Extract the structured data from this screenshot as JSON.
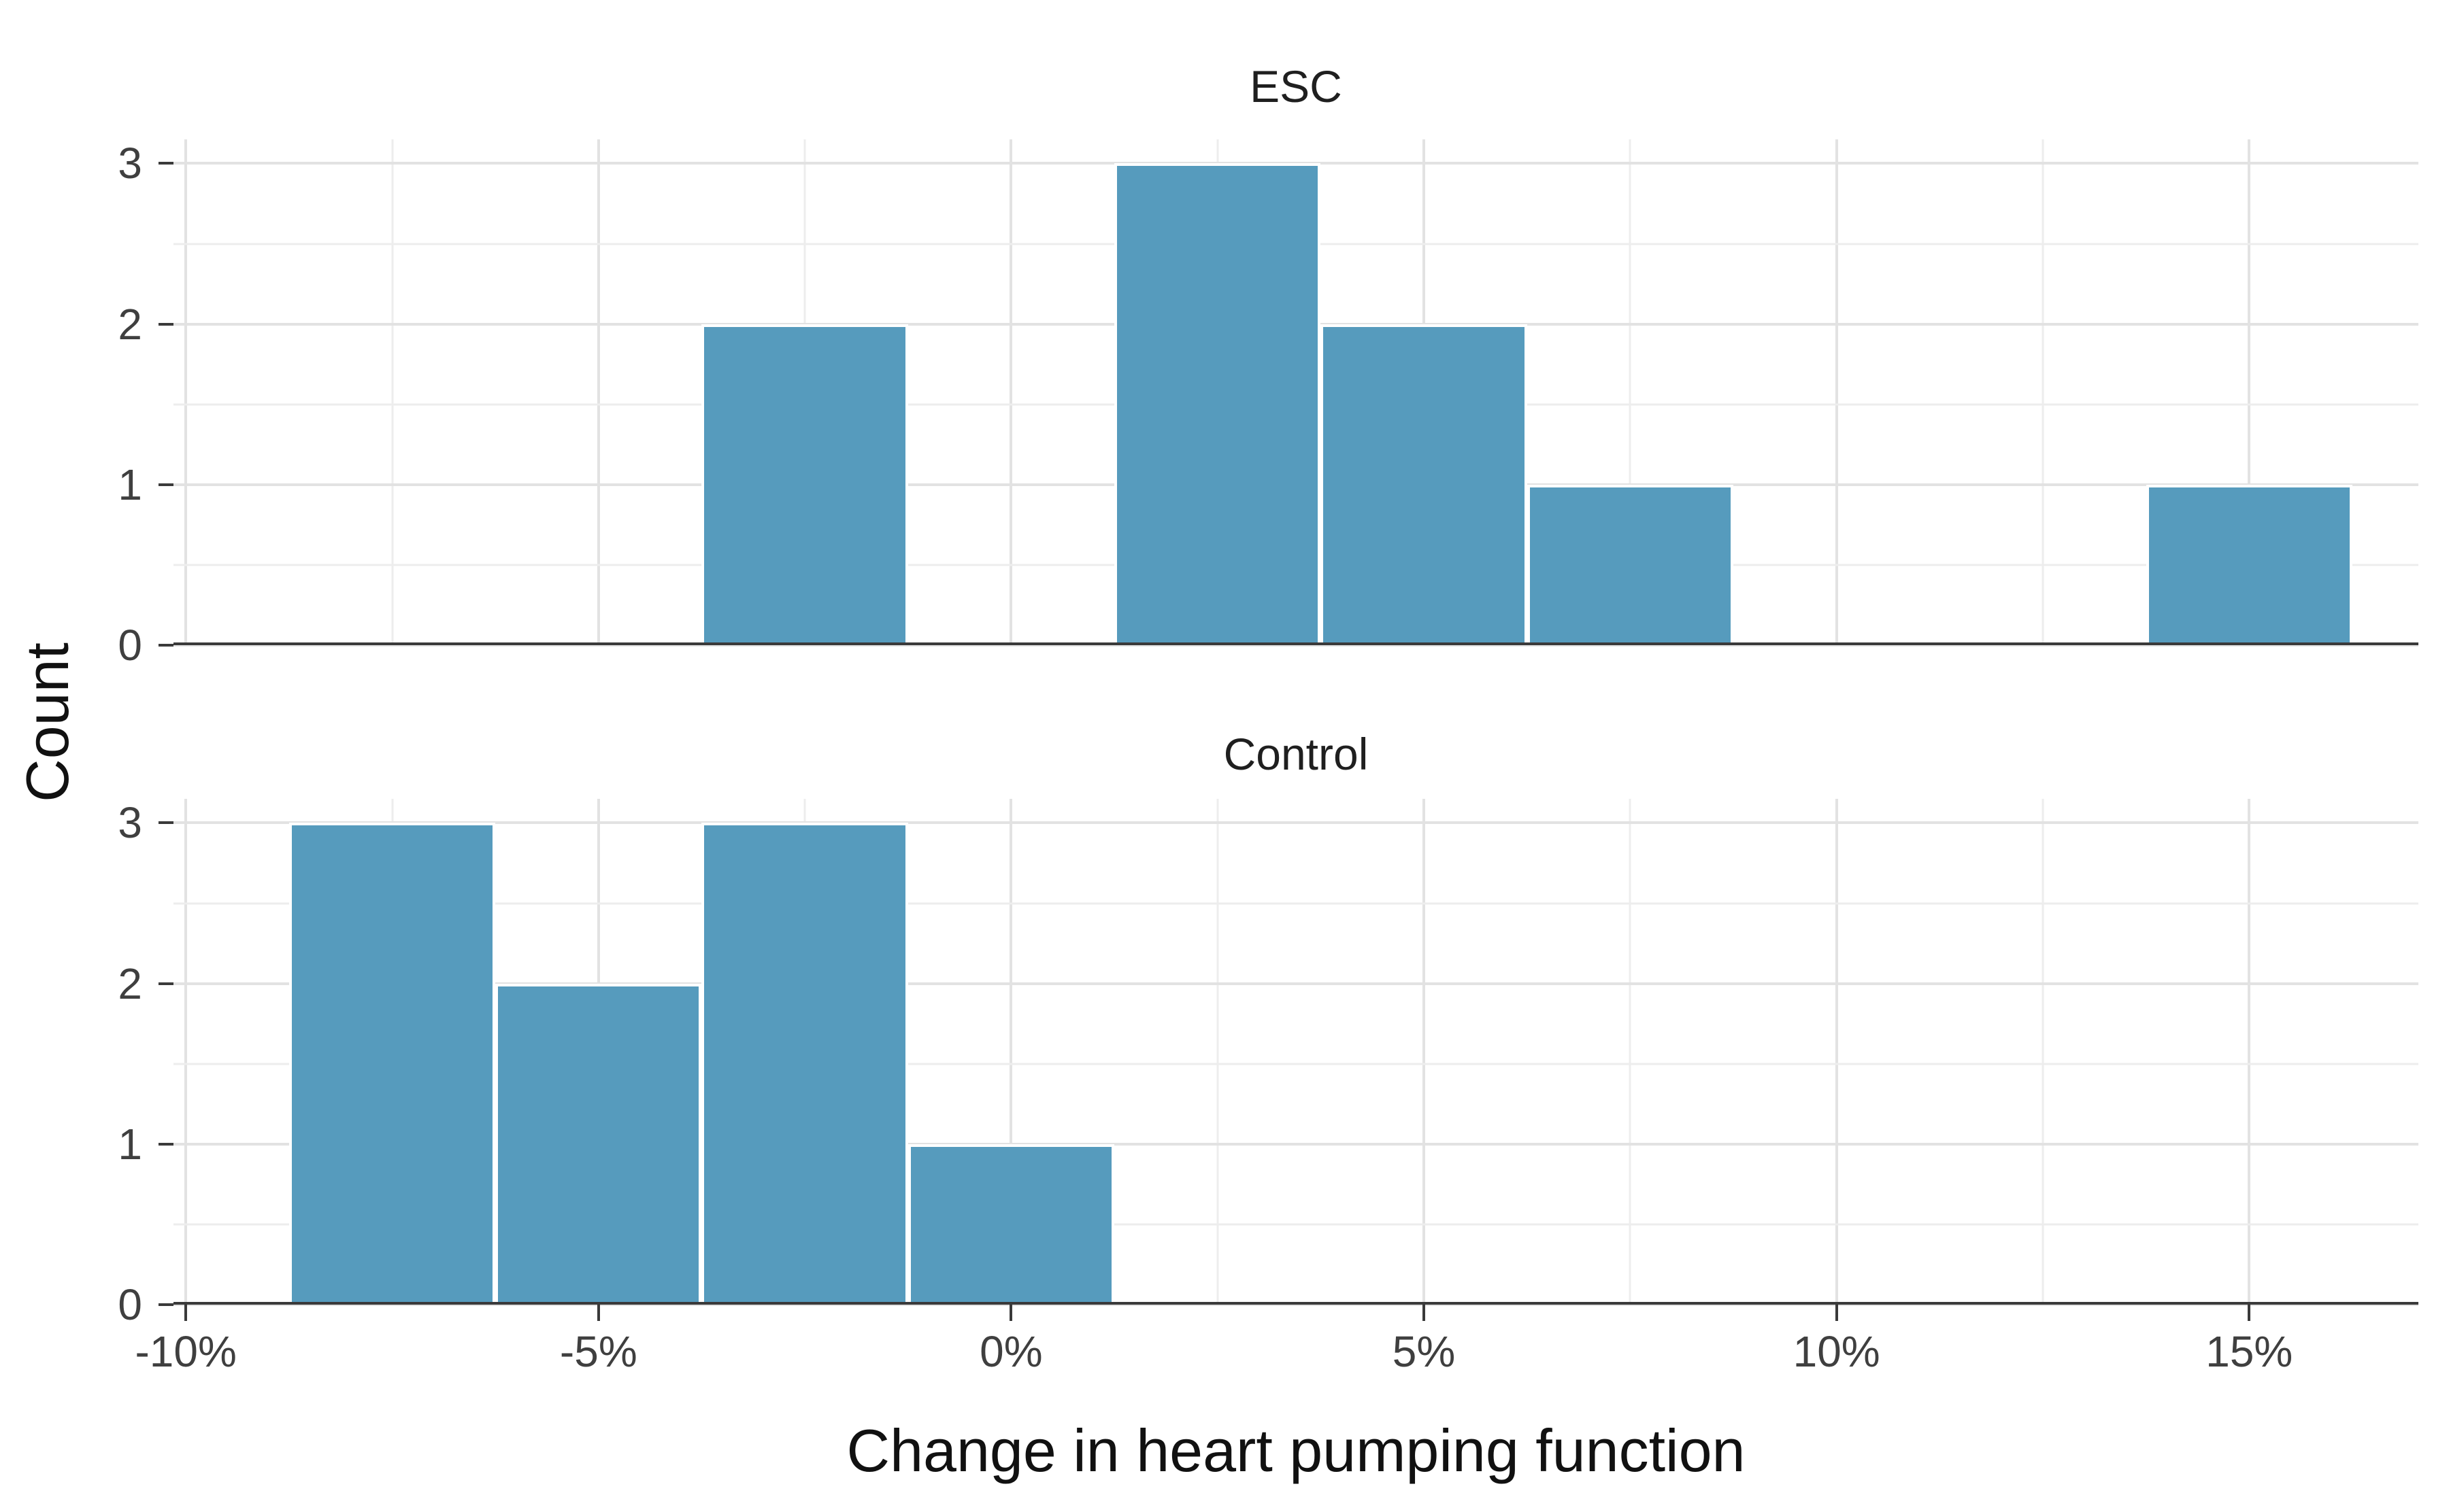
{
  "chart_data": {
    "type": "histogram",
    "xlabel": "Change in heart pumping function",
    "ylabel": "Count",
    "bar_color": "#569BBD",
    "axis_line_color": "#3A3A3A",
    "grid_major_color": "#E2E2E2",
    "grid_minor_color": "#EDEDED",
    "xlim": [
      -10.15,
      17.05
    ],
    "ylim": [
      0,
      3.15
    ],
    "x_minor_step": 2.5,
    "y_minor_step": 0.5,
    "bin_width": 2.5,
    "grid": "on",
    "legend": "none",
    "x_ticks": [
      {
        "value": -10,
        "label": "-10%"
      },
      {
        "value": -5,
        "label": "-5%"
      },
      {
        "value": 0,
        "label": "0%"
      },
      {
        "value": 5,
        "label": "5%"
      },
      {
        "value": 10,
        "label": "10%"
      },
      {
        "value": 15,
        "label": "15%"
      }
    ],
    "y_ticks": [
      {
        "value": 0,
        "label": "0"
      },
      {
        "value": 1,
        "label": "1"
      },
      {
        "value": 2,
        "label": "2"
      },
      {
        "value": 3,
        "label": "3"
      }
    ],
    "facets": [
      {
        "label": "ESC",
        "bins": [
          {
            "start": -3.75,
            "end": -1.25,
            "count": 2
          },
          {
            "start": 1.25,
            "end": 3.75,
            "count": 3
          },
          {
            "start": 3.75,
            "end": 6.25,
            "count": 2
          },
          {
            "start": 6.25,
            "end": 8.75,
            "count": 1
          },
          {
            "start": 13.75,
            "end": 16.25,
            "count": 1
          }
        ]
      },
      {
        "label": "Control",
        "bins": [
          {
            "start": -8.75,
            "end": -6.25,
            "count": 3
          },
          {
            "start": -6.25,
            "end": -3.75,
            "count": 2
          },
          {
            "start": -3.75,
            "end": -1.25,
            "count": 3
          },
          {
            "start": -1.25,
            "end": 1.25,
            "count": 1
          }
        ]
      }
    ]
  }
}
